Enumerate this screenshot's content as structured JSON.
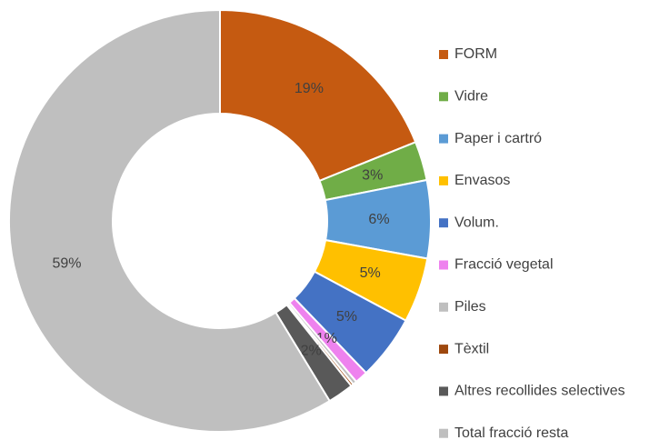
{
  "chart_data": {
    "type": "donut",
    "categories": [
      "FORM",
      "Vidre",
      "Paper i cartró",
      "Envasos",
      "Volum.",
      "Fracció vegetal",
      "Piles",
      "Tèxtil",
      "Altres recollides selectives",
      "Total fracció resta"
    ],
    "values": [
      19,
      3,
      6,
      5,
      5,
      1,
      0.3,
      0.2,
      2,
      59
    ],
    "value_labels": [
      "19%",
      "3%",
      "6%",
      "5%",
      "5%",
      "1%",
      null,
      null,
      "2%",
      "59%"
    ],
    "colors": [
      "#c55a11",
      "#70ad47",
      "#5b9bd5",
      "#ffc000",
      "#4472c4",
      "#ee82ee",
      "#bfbfbf",
      "#9e480e",
      "#595959",
      "#bfbfbf"
    ],
    "legend": "right"
  }
}
